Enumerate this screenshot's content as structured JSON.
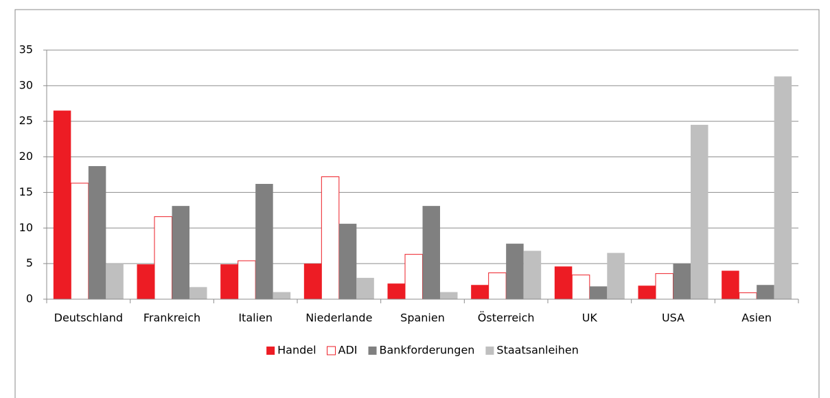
{
  "chart_data": {
    "type": "bar",
    "categories": [
      "Deutschland",
      "Frankreich",
      "Italien",
      "Niederlande",
      "Spanien",
      "Österreich",
      "UK",
      "USA",
      "Asien"
    ],
    "series": [
      {
        "name": "Handel",
        "color": "#ed1c24",
        "values": [
          26.5,
          4.9,
          4.9,
          5.0,
          2.2,
          2.0,
          4.6,
          1.9,
          4.0
        ]
      },
      {
        "name": "ADI",
        "color": "#ffffff",
        "stroke": "#ed1c24",
        "values": [
          16.3,
          11.6,
          5.4,
          17.2,
          6.3,
          3.7,
          3.4,
          3.6,
          0.9
        ]
      },
      {
        "name": "Bankforderungen",
        "color": "#808080",
        "values": [
          18.7,
          13.1,
          16.2,
          10.6,
          13.1,
          7.8,
          1.8,
          5.0,
          2.0
        ]
      },
      {
        "name": "Staatsanleihen",
        "color": "#bfbfbf",
        "values": [
          5.0,
          1.7,
          1.0,
          3.0,
          1.0,
          6.8,
          6.5,
          24.5,
          31.3
        ]
      }
    ],
    "ylim": [
      0,
      35
    ],
    "yticks": [
      0,
      5,
      10,
      15,
      20,
      25,
      30,
      35
    ],
    "grid": true,
    "legend": "bottom"
  }
}
